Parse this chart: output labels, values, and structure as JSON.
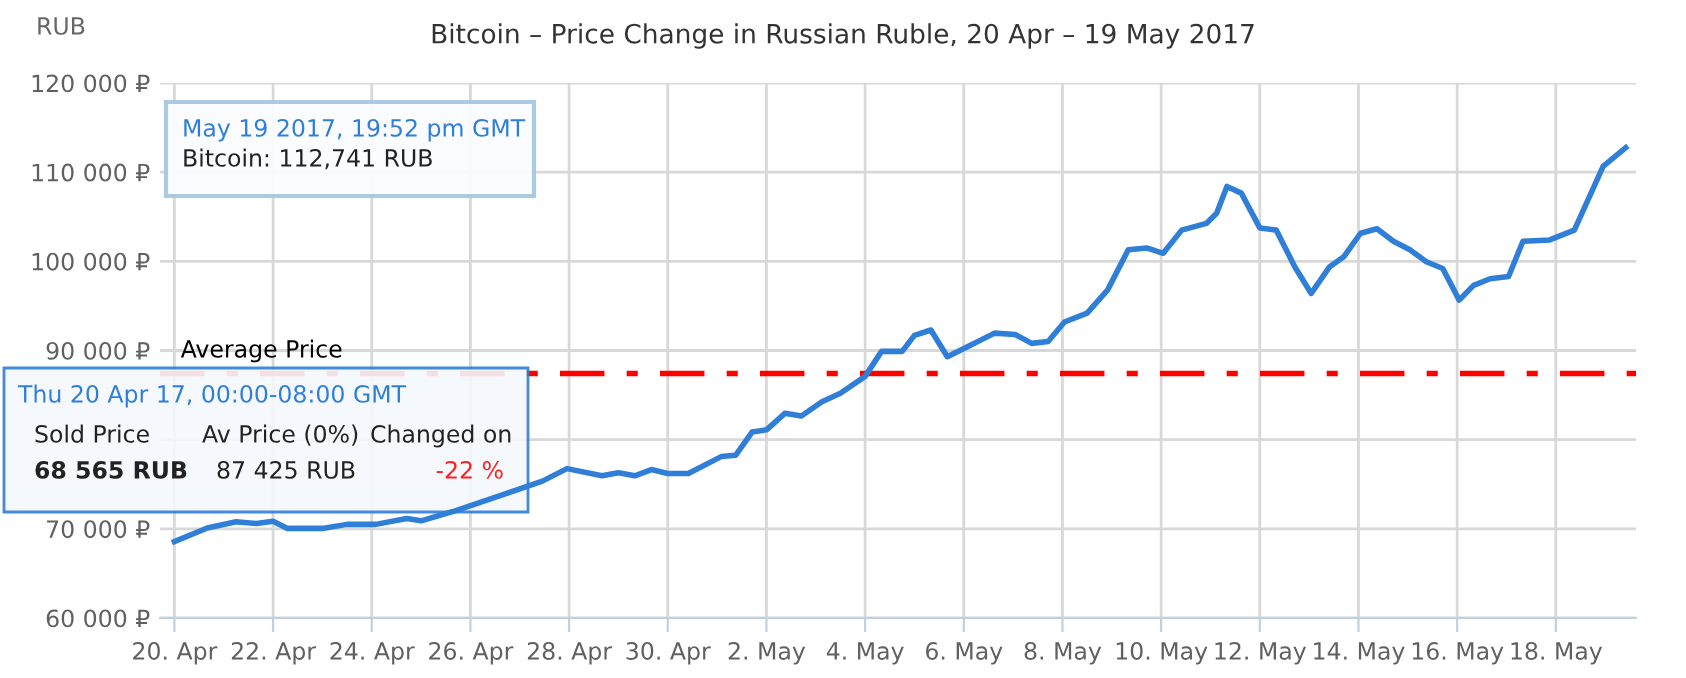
{
  "chart_data": {
    "type": "line",
    "title": "Bitcoin – Price Change in Russian Ruble, 20 Apr – 19 May 2017",
    "ylabel": "RUB",
    "x": [
      "2017-04-20T00:00",
      "2017-04-20T16:00",
      "2017-04-21T06:00",
      "2017-04-21T16:00",
      "2017-04-22T00:00",
      "2017-04-22T07:00",
      "2017-04-23T00:00",
      "2017-04-23T12:00",
      "2017-04-24T02:00",
      "2017-04-24T17:00",
      "2017-04-25T00:00",
      "2017-04-25T17:00",
      "2017-04-26T18:00",
      "2017-04-27T11:00",
      "2017-04-27T23:00",
      "2017-04-28T16:00",
      "2017-04-29T00:00",
      "2017-04-29T08:00",
      "2017-04-29T16:00",
      "2017-04-30T00:00",
      "2017-04-30T10:00",
      "2017-05-01T02:00",
      "2017-05-01T09:00",
      "2017-05-01T17:00",
      "2017-05-02T00:00",
      "2017-05-02T09:00",
      "2017-05-02T17:00",
      "2017-05-03T03:00",
      "2017-05-03T12:00",
      "2017-05-04T00:00",
      "2017-05-04T08:00",
      "2017-05-04T18:00",
      "2017-05-05T00:00",
      "2017-05-05T08:00",
      "2017-05-05T16:00",
      "2017-05-06T02:00",
      "2017-05-06T15:00",
      "2017-05-07T01:00",
      "2017-05-07T09:00",
      "2017-05-07T17:00",
      "2017-05-08T01:00",
      "2017-05-08T12:00",
      "2017-05-08T22:00",
      "2017-05-09T08:00",
      "2017-05-09T17:00",
      "2017-05-10T01:00",
      "2017-05-10T10:00",
      "2017-05-10T22:00",
      "2017-05-11T03:00",
      "2017-05-11T08:00",
      "2017-05-11T15:00",
      "2017-05-12T00:00",
      "2017-05-12T08:00",
      "2017-05-12T17:00",
      "2017-05-13T01:00",
      "2017-05-13T10:00",
      "2017-05-13T17:00",
      "2017-05-14T01:00",
      "2017-05-14T09:00",
      "2017-05-14T17:00",
      "2017-05-15T01:00",
      "2017-05-15T09:00",
      "2017-05-15T17:00",
      "2017-05-16T01:00",
      "2017-05-16T08:00",
      "2017-05-16T16:00",
      "2017-05-17T01:00",
      "2017-05-17T08:00",
      "2017-05-17T21:00",
      "2017-05-18T09:00",
      "2017-05-18T23:00",
      "2017-05-19T10:00"
    ],
    "series": [
      {
        "color": "#2f7ed8",
        "values": [
          68565,
          70100,
          70800,
          70600,
          70850,
          70050,
          70050,
          70500,
          70500,
          71150,
          70900,
          72050,
          74000,
          75350,
          76750,
          75950,
          76300,
          75950,
          76650,
          76200,
          76200,
          78100,
          78250,
          80850,
          81100,
          82950,
          82650,
          84250,
          85200,
          87100,
          89900,
          89900,
          91700,
          92300,
          89300,
          90450,
          91950,
          91800,
          90800,
          91000,
          93200,
          94200,
          96800,
          101300,
          101500,
          100900,
          103500,
          104250,
          105400,
          108400,
          107650,
          103750,
          103500,
          99400,
          96400,
          99400,
          100550,
          103150,
          103650,
          102250,
          101300,
          99950,
          99200,
          95650,
          97300,
          98050,
          98300,
          102250,
          102400,
          103500,
          110650,
          112741
        ]
      }
    ],
    "xlim": [
      "2017-04-19T17:00",
      "2017-05-19T15:00"
    ],
    "xticks": [
      {
        "value": "2017-04-20",
        "label": "20. Apr"
      },
      {
        "value": "2017-04-22",
        "label": "22. Apr"
      },
      {
        "value": "2017-04-24",
        "label": "24. Apr"
      },
      {
        "value": "2017-04-26",
        "label": "26. Apr"
      },
      {
        "value": "2017-04-28",
        "label": "28. Apr"
      },
      {
        "value": "2017-04-30",
        "label": "30. Apr"
      },
      {
        "value": "2017-05-02",
        "label": "2. May"
      },
      {
        "value": "2017-05-04",
        "label": "4. May"
      },
      {
        "value": "2017-05-06",
        "label": "6. May"
      },
      {
        "value": "2017-05-08",
        "label": "8. May"
      },
      {
        "value": "2017-05-10",
        "label": "10. May"
      },
      {
        "value": "2017-05-12",
        "label": "12. May"
      },
      {
        "value": "2017-05-14",
        "label": "14. May"
      },
      {
        "value": "2017-05-16",
        "label": "16. May"
      },
      {
        "value": "2017-05-18",
        "label": "18. May"
      }
    ],
    "ylim": [
      60000,
      120000
    ],
    "yticks": [
      {
        "value": 60000,
        "label": "60 000 ₽"
      },
      {
        "value": 70000,
        "label": "70 000 ₽"
      },
      {
        "value": 80000,
        "label": null
      },
      {
        "value": 90000,
        "label": "90 000 ₽"
      },
      {
        "value": 100000,
        "label": "100 000 ₽"
      },
      {
        "value": 110000,
        "label": "110 000 ₽"
      },
      {
        "value": 120000,
        "label": "120 000 ₽"
      }
    ],
    "ref_lines": [
      {
        "axis": "y",
        "value": 87425,
        "label": "Average Price",
        "color": "#ff0000",
        "line_style": "dashdot"
      }
    ],
    "grid": true,
    "annotations": [
      "May 19 2017, 19:52 pm GMT",
      "Bitcoin: 112,741 RUB",
      "Thu 20 Apr 17, 00:00-08:00 GMT",
      "Sold Price",
      "Av Price (0%)",
      "Changed on",
      "68 565 RUB",
      "87 425 RUB",
      "-22 %"
    ]
  }
}
